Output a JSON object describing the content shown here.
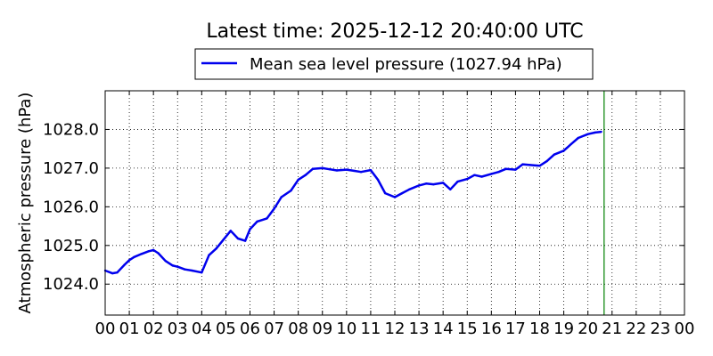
{
  "chart_data": {
    "type": "line",
    "title": "Latest time: 2025-12-12 20:40:00 UTC",
    "ylabel": "Atmospheric pressure (hPa)",
    "xlabel": "",
    "xlim": [
      0,
      24
    ],
    "ylim": [
      1023.2,
      1029.0
    ],
    "grid": true,
    "legend_position": "top-center, above plot",
    "x_ticks": [
      "00",
      "01",
      "02",
      "03",
      "04",
      "05",
      "06",
      "07",
      "08",
      "09",
      "10",
      "11",
      "12",
      "13",
      "14",
      "15",
      "16",
      "17",
      "18",
      "19",
      "20",
      "21",
      "22",
      "23",
      "00"
    ],
    "y_ticks": [
      "1024.0",
      "1025.0",
      "1026.0",
      "1027.0",
      "1028.0"
    ],
    "y_tick_values": [
      1024.0,
      1025.0,
      1026.0,
      1027.0,
      1028.0
    ],
    "latest_time_marker_hour": 20.67,
    "series": [
      {
        "name": "Mean sea level pressure (1027.94 hPa)",
        "color": "#0000ee",
        "x": [
          0.0,
          0.3,
          0.5,
          0.8,
          1.0,
          1.2,
          1.5,
          1.8,
          2.0,
          2.2,
          2.5,
          2.8,
          3.0,
          3.3,
          3.6,
          4.0,
          4.3,
          4.6,
          4.9,
          5.2,
          5.5,
          5.8,
          6.0,
          6.3,
          6.7,
          7.0,
          7.3,
          7.7,
          8.0,
          8.3,
          8.6,
          9.0,
          9.3,
          9.6,
          10.0,
          10.3,
          10.6,
          11.0,
          11.3,
          11.6,
          12.0,
          12.3,
          12.6,
          13.0,
          13.3,
          13.6,
          14.0,
          14.3,
          14.6,
          15.0,
          15.3,
          15.6,
          16.0,
          16.3,
          16.6,
          17.0,
          17.3,
          17.6,
          18.0,
          18.3,
          18.6,
          19.0,
          19.3,
          19.6,
          20.0,
          20.3,
          20.55
        ],
        "values": [
          1024.35,
          1024.28,
          1024.3,
          1024.5,
          1024.62,
          1024.7,
          1024.78,
          1024.85,
          1024.88,
          1024.8,
          1024.6,
          1024.48,
          1024.45,
          1024.38,
          1024.35,
          1024.3,
          1024.75,
          1024.92,
          1025.15,
          1025.38,
          1025.18,
          1025.12,
          1025.42,
          1025.62,
          1025.7,
          1025.95,
          1026.25,
          1026.42,
          1026.7,
          1026.82,
          1026.98,
          1027.0,
          1026.97,
          1026.94,
          1026.96,
          1026.93,
          1026.9,
          1026.95,
          1026.7,
          1026.35,
          1026.25,
          1026.35,
          1026.45,
          1026.55,
          1026.6,
          1026.58,
          1026.62,
          1026.45,
          1026.65,
          1026.72,
          1026.82,
          1026.78,
          1026.85,
          1026.9,
          1026.98,
          1026.96,
          1027.1,
          1027.08,
          1027.06,
          1027.18,
          1027.35,
          1027.45,
          1027.62,
          1027.78,
          1027.88,
          1027.92,
          1027.94
        ]
      }
    ]
  }
}
